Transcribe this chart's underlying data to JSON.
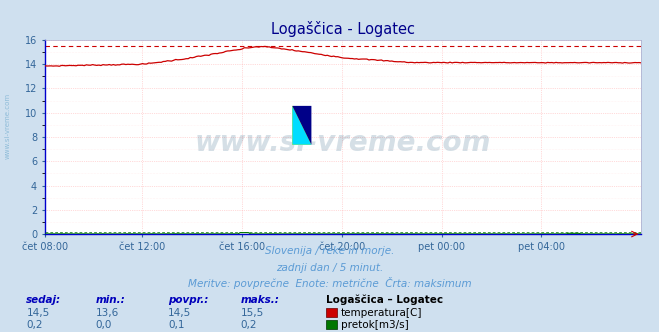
{
  "title": "Logaščica - Logatec",
  "outer_bg_color": "#cfe0ef",
  "plot_bg_color": "#ffffff",
  "grid_color": "#ffb0b0",
  "grid_minor_color": "#ffe0e0",
  "temp_color": "#cc0000",
  "flow_color": "#007700",
  "blue_line_color": "#0000cc",
  "max_line_color": "#cc0000",
  "x_labels": [
    "čet 08:00",
    "čet 12:00",
    "čet 16:00",
    "čet 20:00",
    "pet 00:00",
    "pet 04:00"
  ],
  "x_ticks_frac": [
    0.0,
    0.1667,
    0.3333,
    0.5,
    0.6667,
    0.8333
  ],
  "total_points": 288,
  "ylim": [
    0,
    16
  ],
  "yticks": [
    0,
    2,
    4,
    6,
    8,
    10,
    12,
    14,
    16
  ],
  "temp_max_line": 15.5,
  "flow_max_line": 0.2,
  "subtitle1": "Slovenija / reke in morje.",
  "subtitle2": "zadnji dan / 5 minut.",
  "subtitle3": "Meritve: povprečne  Enote: metrične  Črta: maksimum",
  "legend_title": "Logaščica – Logatec",
  "legend_entries": [
    "temperatura[C]",
    "pretok[m3/s]"
  ],
  "table_headers": [
    "sedaj:",
    "min.:",
    "povpr.:",
    "maks.:"
  ],
  "table_temp": [
    "14,5",
    "13,6",
    "14,5",
    "15,5"
  ],
  "table_flow": [
    "0,2",
    "0,0",
    "0,1",
    "0,2"
  ],
  "watermark_text": "www.si-vreme.com",
  "watermark_color": "#1a5276",
  "watermark_alpha": 0.18,
  "watermark_side_color": "#7fb3d3",
  "watermark_side_alpha": 0.8,
  "subtitle_color": "#5b9bd5",
  "header_color": "#0000bb",
  "value_color": "#336699",
  "axis_label_color": "#336699",
  "title_color": "#00008b",
  "spine_color": "#aaaacc"
}
